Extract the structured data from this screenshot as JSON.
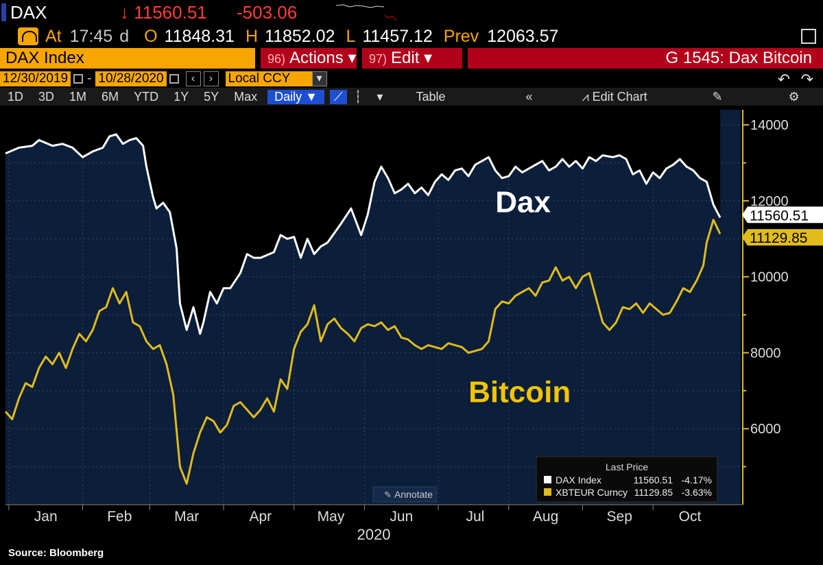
{
  "quote": {
    "ticker": "DAX",
    "last": "↓ 11560.51",
    "change": "-503.06",
    "at_label": "At",
    "time": "17:45",
    "time_suffix": "d",
    "o_label": "O",
    "open": "11848.31",
    "h_label": "H",
    "high": "11852.02",
    "l_label": "L",
    "low": "11457.12",
    "prev_label": "Prev",
    "prev": "12063.57"
  },
  "command": {
    "security": "DAX Index",
    "actions_num": "96)",
    "actions": "Actions ▾",
    "edit_num": "97)",
    "edit": "Edit ▾",
    "title": "G 1545: Dax Bitcoin"
  },
  "range": {
    "start": "12/30/2019",
    "end": "10/28/2020",
    "dash": "-",
    "currency": "Local CCY"
  },
  "toolbar": {
    "periods": [
      "1D",
      "3D",
      "1M",
      "6M",
      "YTD",
      "1Y",
      "5Y",
      "Max"
    ],
    "frequency": "Daily ▼",
    "table": "Table",
    "edit_chart": "Edit Chart"
  },
  "colors": {
    "accent": "#f7a600",
    "plot_bg": "#0b1e3a",
    "dax": "#ffffff",
    "btc": "#e0bc1c",
    "down": "#ff3b3b"
  },
  "chart_data": {
    "type": "line",
    "ylim": [
      4000,
      14400
    ],
    "yticks": [
      6000,
      8000,
      10000,
      12000,
      14000
    ],
    "x_range": [
      0,
      213
    ],
    "month_ticks": [
      {
        "label": "Jan",
        "day": 12
      },
      {
        "label": "Feb",
        "day": 34
      },
      {
        "label": "Mar",
        "day": 54
      },
      {
        "label": "Apr",
        "day": 76
      },
      {
        "label": "May",
        "day": 97
      },
      {
        "label": "Jun",
        "day": 118
      },
      {
        "label": "Jul",
        "day": 140
      },
      {
        "label": "Aug",
        "day": 161
      },
      {
        "label": "Sep",
        "day": 183
      },
      {
        "label": "Oct",
        "day": 204
      }
    ],
    "year_label": "2020",
    "annotations": [
      {
        "text": "Dax",
        "day": 146,
        "value": 11700,
        "color": "#ffffff"
      },
      {
        "text": "Bitcoin",
        "day": 138,
        "value": 6700,
        "color": "#f2c400"
      }
    ],
    "annotate_button": "Annotate",
    "legend": {
      "title": "Last Price",
      "placement": "bottom-right",
      "items": [
        {
          "name": "DAX Index",
          "last": "11560.51",
          "pct": "-4.17%",
          "color": "#ffffff"
        },
        {
          "name": "XBTEUR Curncy",
          "last": "11129.85",
          "pct": "-3.63%",
          "color": "#e0bc1c"
        }
      ]
    },
    "last_labels": [
      {
        "text": "11560.51",
        "value": 11560.51,
        "series": "dax"
      },
      {
        "text": "11129.85",
        "value": 11129.85,
        "series": "btc"
      }
    ],
    "series": [
      {
        "id": "dax",
        "name": "DAX Index",
        "points": [
          [
            0,
            13250
          ],
          [
            4,
            13400
          ],
          [
            8,
            13450
          ],
          [
            10,
            13600
          ],
          [
            14,
            13450
          ],
          [
            17,
            13500
          ],
          [
            20,
            13400
          ],
          [
            23,
            13150
          ],
          [
            26,
            13300
          ],
          [
            29,
            13400
          ],
          [
            31,
            13700
          ],
          [
            33,
            13750
          ],
          [
            35,
            13500
          ],
          [
            37,
            13600
          ],
          [
            39,
            13650
          ],
          [
            41,
            13450
          ],
          [
            42,
            12900
          ],
          [
            44,
            12100
          ],
          [
            45,
            11800
          ],
          [
            47,
            11950
          ],
          [
            49,
            11700
          ],
          [
            51,
            10750
          ],
          [
            52,
            9300
          ],
          [
            54,
            8600
          ],
          [
            56,
            9200
          ],
          [
            58,
            8500
          ],
          [
            59,
            8800
          ],
          [
            61,
            9600
          ],
          [
            63,
            9300
          ],
          [
            65,
            9700
          ],
          [
            67,
            9700
          ],
          [
            70,
            10100
          ],
          [
            72,
            10600
          ],
          [
            74,
            10500
          ],
          [
            76,
            10500
          ],
          [
            80,
            10650
          ],
          [
            82,
            11100
          ],
          [
            84,
            11000
          ],
          [
            86,
            11050
          ],
          [
            88,
            10500
          ],
          [
            90,
            11000
          ],
          [
            92,
            10600
          ],
          [
            94,
            10800
          ],
          [
            96,
            10900
          ],
          [
            100,
            11400
          ],
          [
            103,
            11800
          ],
          [
            106,
            11100
          ],
          [
            108,
            11650
          ],
          [
            110,
            12500
          ],
          [
            112,
            12900
          ],
          [
            114,
            12600
          ],
          [
            116,
            12200
          ],
          [
            118,
            12300
          ],
          [
            120,
            12450
          ],
          [
            122,
            12200
          ],
          [
            124,
            12350
          ],
          [
            126,
            12150
          ],
          [
            128,
            12500
          ],
          [
            130,
            12700
          ],
          [
            132,
            12550
          ],
          [
            134,
            12800
          ],
          [
            136,
            12850
          ],
          [
            138,
            12650
          ],
          [
            140,
            12950
          ],
          [
            142,
            13050
          ],
          [
            144,
            13150
          ],
          [
            146,
            12800
          ],
          [
            148,
            12600
          ],
          [
            150,
            12650
          ],
          [
            152,
            12900
          ],
          [
            154,
            12750
          ],
          [
            156,
            12850
          ],
          [
            158,
            12950
          ],
          [
            160,
            13050
          ],
          [
            162,
            12800
          ],
          [
            164,
            12900
          ],
          [
            166,
            13100
          ],
          [
            168,
            12900
          ],
          [
            170,
            13050
          ],
          [
            172,
            12850
          ],
          [
            174,
            13150
          ],
          [
            176,
            13050
          ],
          [
            178,
            13200
          ],
          [
            181,
            13150
          ],
          [
            183,
            13200
          ],
          [
            185,
            13100
          ],
          [
            187,
            12700
          ],
          [
            189,
            12800
          ],
          [
            191,
            12450
          ],
          [
            193,
            12750
          ],
          [
            195,
            12600
          ],
          [
            197,
            12850
          ],
          [
            199,
            12950
          ],
          [
            201,
            13100
          ],
          [
            203,
            12900
          ],
          [
            205,
            12800
          ],
          [
            207,
            12600
          ],
          [
            209,
            12500
          ],
          [
            211,
            11900
          ],
          [
            213,
            11560.51
          ]
        ]
      },
      {
        "id": "btc",
        "name": "XBTEUR Curncy",
        "points": [
          [
            0,
            6450
          ],
          [
            2,
            6250
          ],
          [
            4,
            6800
          ],
          [
            6,
            7200
          ],
          [
            8,
            7100
          ],
          [
            10,
            7600
          ],
          [
            12,
            7900
          ],
          [
            14,
            7700
          ],
          [
            16,
            8000
          ],
          [
            18,
            7600
          ],
          [
            20,
            8100
          ],
          [
            22,
            8500
          ],
          [
            24,
            8300
          ],
          [
            26,
            8600
          ],
          [
            28,
            9100
          ],
          [
            30,
            9200
          ],
          [
            32,
            9700
          ],
          [
            34,
            9300
          ],
          [
            36,
            9600
          ],
          [
            38,
            8800
          ],
          [
            40,
            8700
          ],
          [
            42,
            8300
          ],
          [
            44,
            8100
          ],
          [
            46,
            8200
          ],
          [
            48,
            7700
          ],
          [
            50,
            6900
          ],
          [
            52,
            5000
          ],
          [
            54,
            4550
          ],
          [
            56,
            5350
          ],
          [
            58,
            5900
          ],
          [
            60,
            6300
          ],
          [
            62,
            6200
          ],
          [
            64,
            5900
          ],
          [
            66,
            6100
          ],
          [
            68,
            6600
          ],
          [
            70,
            6700
          ],
          [
            72,
            6500
          ],
          [
            74,
            6300
          ],
          [
            76,
            6500
          ],
          [
            78,
            6800
          ],
          [
            80,
            6450
          ],
          [
            82,
            7300
          ],
          [
            84,
            7050
          ],
          [
            86,
            8100
          ],
          [
            88,
            8550
          ],
          [
            90,
            8750
          ],
          [
            92,
            9250
          ],
          [
            94,
            8300
          ],
          [
            96,
            8750
          ],
          [
            98,
            8900
          ],
          [
            100,
            8650
          ],
          [
            102,
            8500
          ],
          [
            104,
            8300
          ],
          [
            106,
            8650
          ],
          [
            108,
            8750
          ],
          [
            110,
            8700
          ],
          [
            112,
            8800
          ],
          [
            114,
            8600
          ],
          [
            116,
            8700
          ],
          [
            118,
            8400
          ],
          [
            120,
            8350
          ],
          [
            122,
            8200
          ],
          [
            124,
            8100
          ],
          [
            126,
            8200
          ],
          [
            128,
            8150
          ],
          [
            130,
            8100
          ],
          [
            132,
            8250
          ],
          [
            134,
            8200
          ],
          [
            136,
            8150
          ],
          [
            138,
            8000
          ],
          [
            140,
            8050
          ],
          [
            142,
            8100
          ],
          [
            144,
            8300
          ],
          [
            146,
            9150
          ],
          [
            148,
            9350
          ],
          [
            150,
            9300
          ],
          [
            152,
            9500
          ],
          [
            154,
            9600
          ],
          [
            156,
            9700
          ],
          [
            158,
            9500
          ],
          [
            160,
            9850
          ],
          [
            162,
            9900
          ],
          [
            164,
            10250
          ],
          [
            166,
            9900
          ],
          [
            168,
            10000
          ],
          [
            170,
            9700
          ],
          [
            172,
            10000
          ],
          [
            174,
            10100
          ],
          [
            176,
            9450
          ],
          [
            178,
            8800
          ],
          [
            180,
            8600
          ],
          [
            182,
            8800
          ],
          [
            184,
            9200
          ],
          [
            186,
            9150
          ],
          [
            188,
            9300
          ],
          [
            190,
            9050
          ],
          [
            192,
            9300
          ],
          [
            194,
            9150
          ],
          [
            196,
            9000
          ],
          [
            198,
            9050
          ],
          [
            200,
            9350
          ],
          [
            202,
            9700
          ],
          [
            204,
            9600
          ],
          [
            206,
            9900
          ],
          [
            208,
            10300
          ],
          [
            209,
            10900
          ],
          [
            210,
            11200
          ],
          [
            211,
            11500
          ],
          [
            213,
            11129.85
          ]
        ]
      }
    ]
  }
}
